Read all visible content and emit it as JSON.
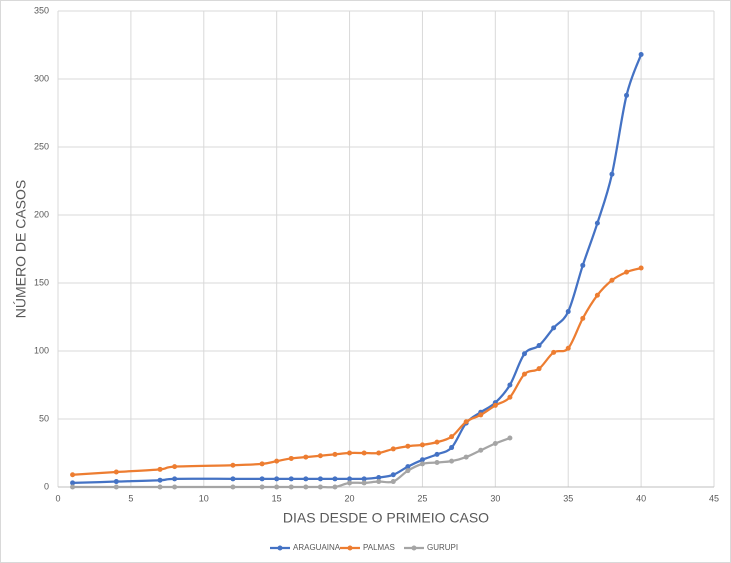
{
  "chart_data": {
    "type": "line",
    "xlabel": "DIAS DESDE O PRIMEIO CASO",
    "ylabel": "NÚMERO DE CASOS",
    "xlim": [
      0,
      45
    ],
    "xticks": [
      0,
      5,
      10,
      15,
      20,
      25,
      30,
      35,
      40,
      45
    ],
    "ylim": [
      0,
      350
    ],
    "yticks": [
      0,
      50,
      100,
      150,
      200,
      250,
      300,
      350
    ],
    "grid": true,
    "legend": "bottom",
    "series": [
      {
        "name": "ARAGUAINA",
        "color": "#4472c4",
        "x": [
          1,
          4,
          7,
          8,
          12,
          14,
          15,
          16,
          17,
          18,
          19,
          20,
          21,
          22,
          23,
          24,
          25,
          26,
          27,
          28,
          29,
          30,
          31,
          32,
          33,
          34,
          35,
          36,
          37,
          38,
          39,
          40
        ],
        "values": [
          3,
          4,
          5,
          6,
          6,
          6,
          6,
          6,
          6,
          6,
          6,
          6,
          6,
          7,
          9,
          15,
          20,
          24,
          29,
          47,
          55,
          62,
          75,
          98,
          104,
          117,
          129,
          163,
          194,
          230,
          288,
          318
        ]
      },
      {
        "name": "PALMAS",
        "color": "#ed7d31",
        "x": [
          1,
          4,
          7,
          8,
          12,
          14,
          15,
          16,
          17,
          18,
          19,
          20,
          21,
          22,
          23,
          24,
          25,
          26,
          27,
          28,
          29,
          30,
          31,
          32,
          33,
          34,
          35,
          36,
          37,
          38,
          39,
          40
        ],
        "values": [
          9,
          11,
          13,
          15,
          16,
          17,
          19,
          21,
          22,
          23,
          24,
          25,
          25,
          25,
          28,
          30,
          31,
          33,
          37,
          48,
          53,
          60,
          66,
          83,
          87,
          99,
          102,
          124,
          141,
          152,
          158,
          161
        ]
      },
      {
        "name": "GURUPI",
        "color": "#a5a5a5",
        "x": [
          1,
          4,
          7,
          8,
          12,
          14,
          15,
          16,
          17,
          18,
          19,
          20,
          21,
          22,
          23,
          24,
          25,
          26,
          27,
          28,
          29,
          30,
          31
        ],
        "values": [
          0,
          0,
          0,
          0,
          0,
          0,
          0,
          0,
          0,
          0,
          0,
          3,
          3,
          4,
          4,
          12,
          17,
          18,
          19,
          22,
          27,
          32,
          36
        ]
      }
    ]
  }
}
